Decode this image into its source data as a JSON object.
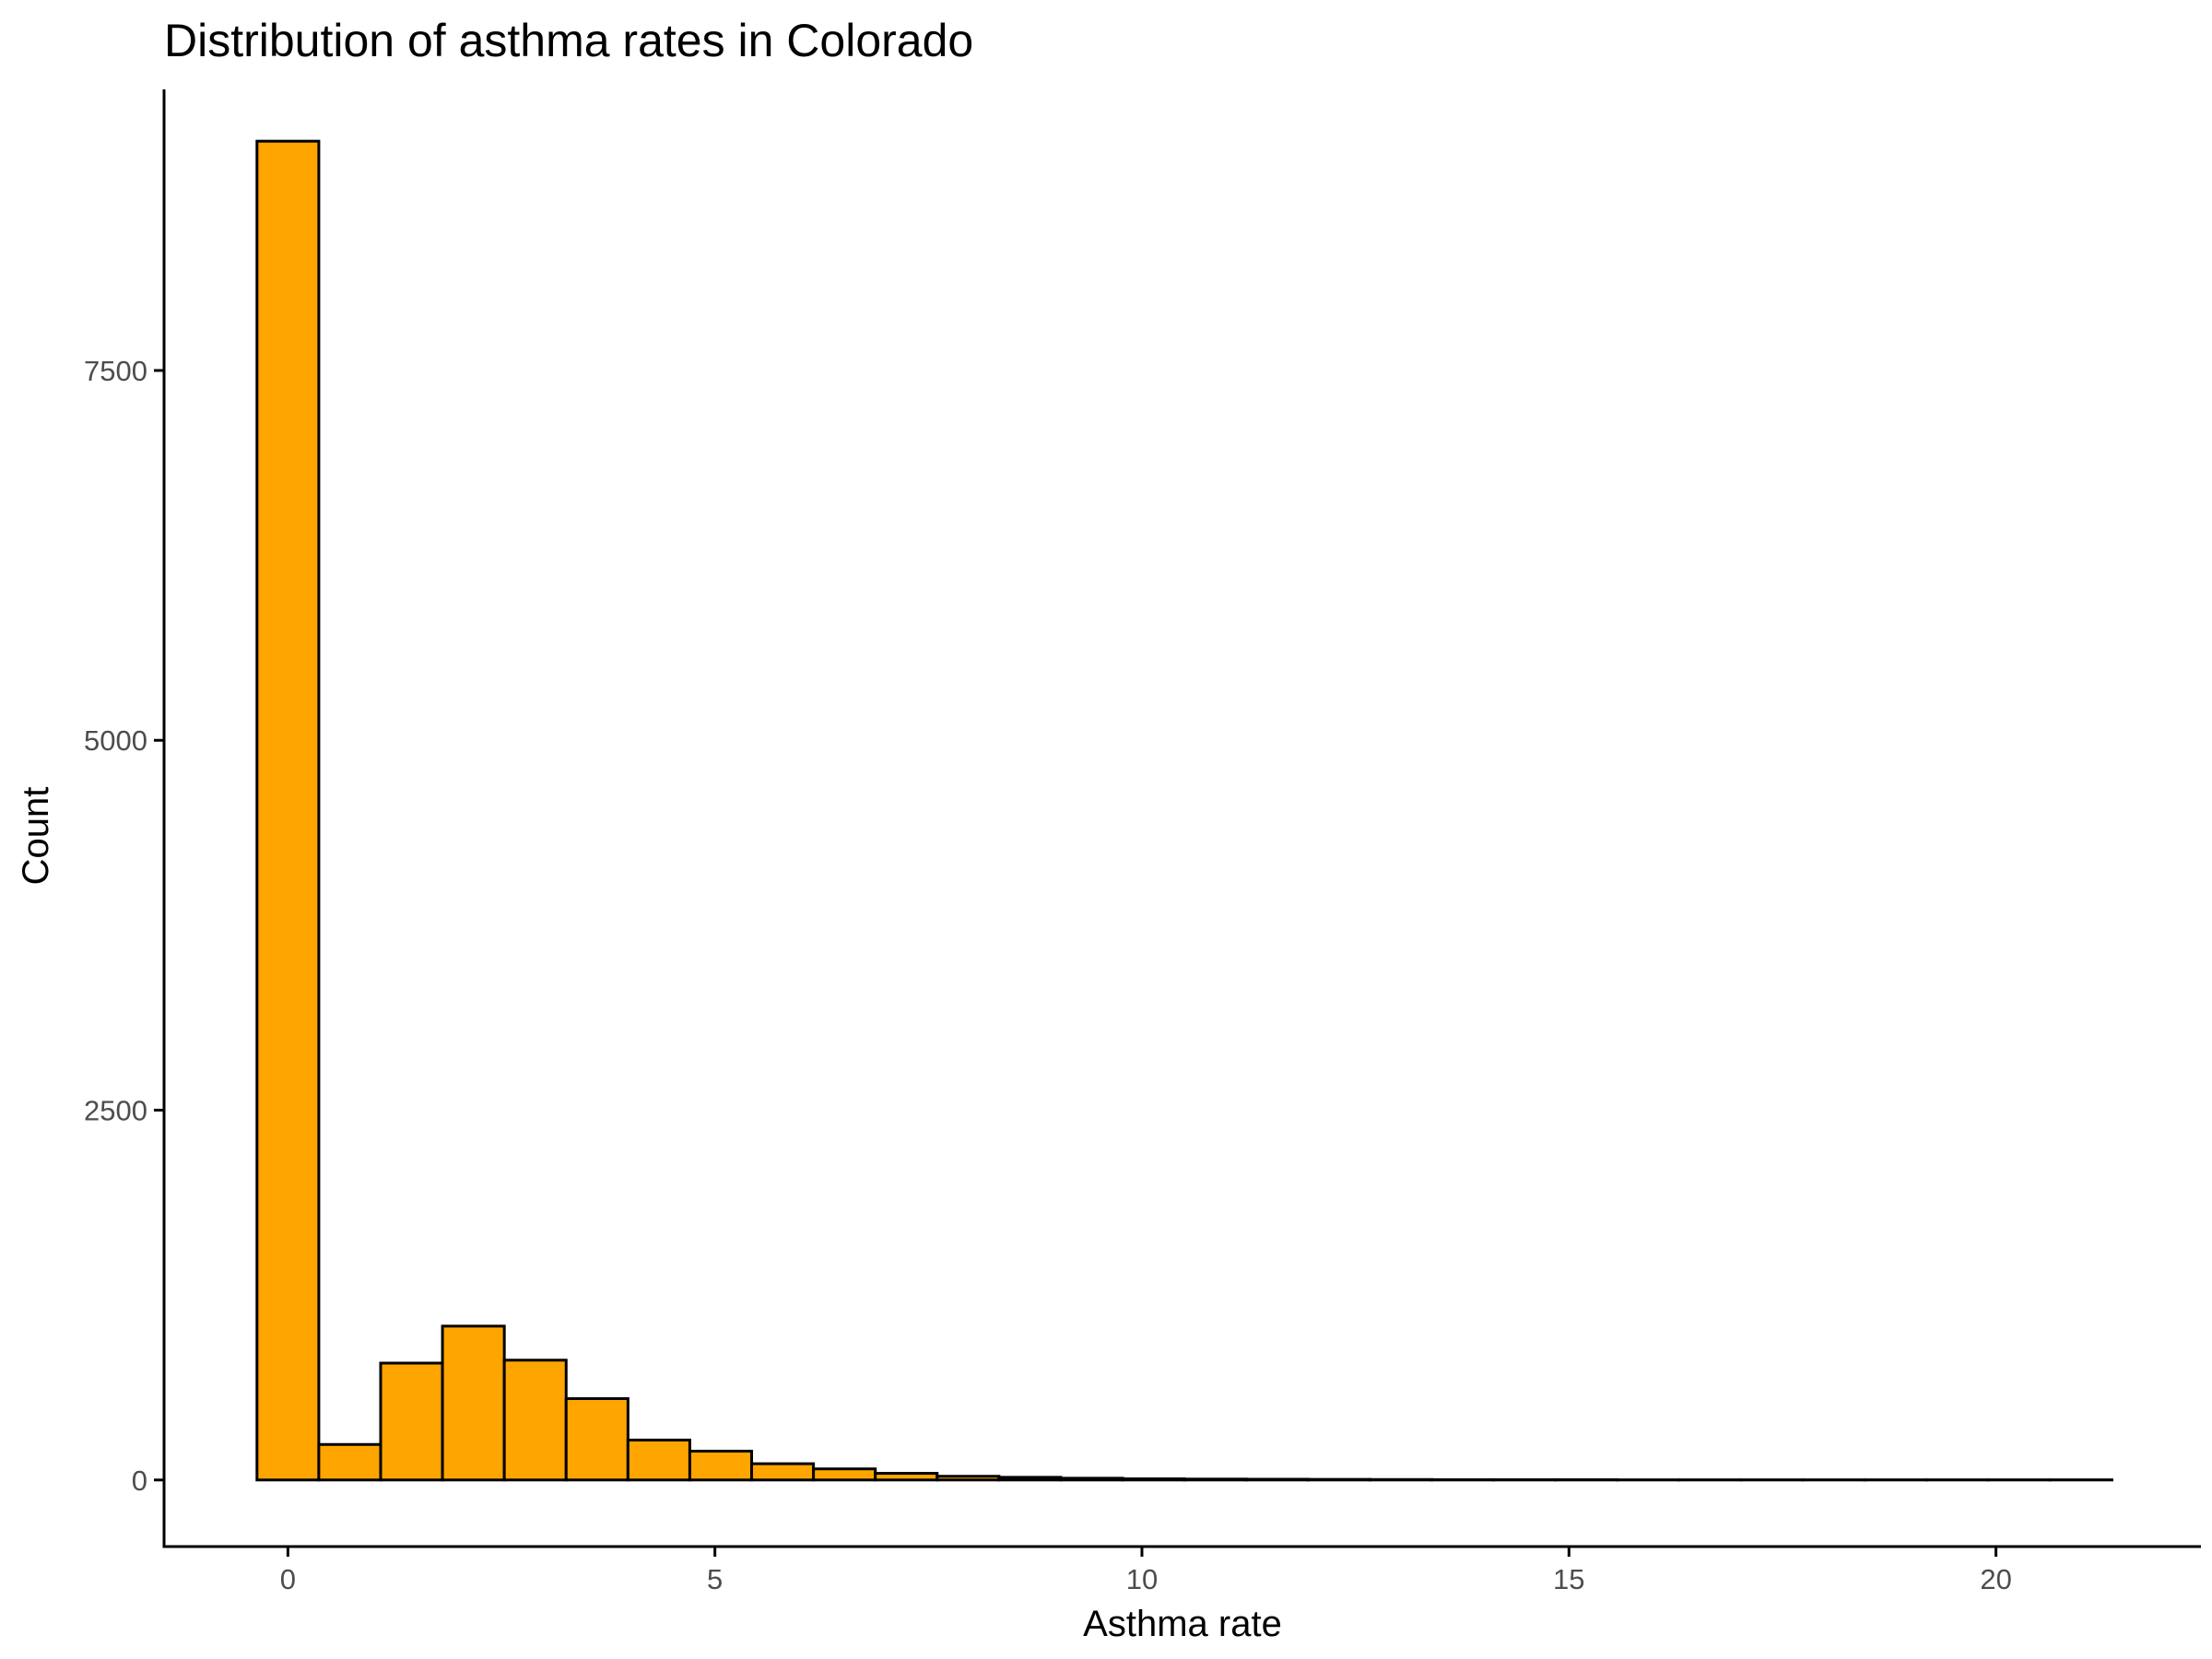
{
  "chart_data": {
    "type": "bar",
    "title": "Distribution of asthma rates in Colorado",
    "xlabel": "Asthma rate",
    "ylabel": "Count",
    "xlim": [
      -1.45,
      22.4
    ],
    "ylim": [
      -450,
      9400
    ],
    "x_ticks": [
      0,
      5,
      10,
      15,
      20
    ],
    "x_tick_labels": [
      "0",
      "5",
      "10",
      "15",
      "20"
    ],
    "y_ticks": [
      0,
      2500,
      5000,
      7500
    ],
    "y_tick_labels": [
      "0",
      "2500",
      "5000",
      "7500"
    ],
    "grid": false,
    "legend": "none",
    "bin_width": 0.724,
    "bins": [
      {
        "x": 0.0,
        "value": 9050
      },
      {
        "x": 0.724,
        "value": 240
      },
      {
        "x": 1.448,
        "value": 790
      },
      {
        "x": 2.172,
        "value": 1040
      },
      {
        "x": 2.896,
        "value": 810
      },
      {
        "x": 3.62,
        "value": 550
      },
      {
        "x": 4.344,
        "value": 270
      },
      {
        "x": 5.068,
        "value": 195
      },
      {
        "x": 5.792,
        "value": 110
      },
      {
        "x": 6.516,
        "value": 75
      },
      {
        "x": 7.24,
        "value": 45
      },
      {
        "x": 7.964,
        "value": 25
      },
      {
        "x": 8.688,
        "value": 18
      },
      {
        "x": 9.412,
        "value": 12
      },
      {
        "x": 10.136,
        "value": 8
      },
      {
        "x": 10.86,
        "value": 6
      },
      {
        "x": 11.584,
        "value": 5
      },
      {
        "x": 12.308,
        "value": 4
      },
      {
        "x": 13.032,
        "value": 3
      },
      {
        "x": 13.756,
        "value": 2
      },
      {
        "x": 14.48,
        "value": 2
      },
      {
        "x": 15.204,
        "value": 2
      },
      {
        "x": 15.928,
        "value": 1
      },
      {
        "x": 16.652,
        "value": 1
      },
      {
        "x": 17.376,
        "value": 1
      },
      {
        "x": 18.1,
        "value": 1
      },
      {
        "x": 18.824,
        "value": 1
      },
      {
        "x": 19.548,
        "value": 1
      },
      {
        "x": 20.272,
        "value": 1
      },
      {
        "x": 20.996,
        "value": 1
      }
    ],
    "colors": {
      "bar_fill": "#FFA500",
      "bar_stroke": "#000000",
      "axis": "#000000",
      "tick_label": "#4d4d4d"
    }
  }
}
